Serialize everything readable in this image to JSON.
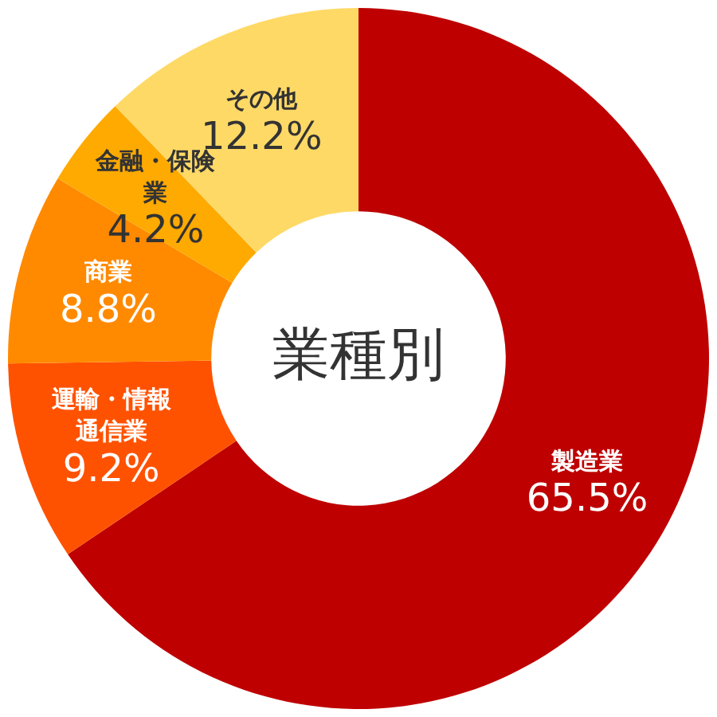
{
  "chart_data": {
    "type": "donut",
    "title": "業種別",
    "categories": [
      "製造業",
      "運輸・情報通信業",
      "商業",
      "金融・保険業",
      "その他"
    ],
    "values": [
      65.5,
      9.2,
      8.8,
      4.2,
      12.2
    ],
    "colors": [
      "#be0000",
      "#ff5200",
      "#ff8a00",
      "#ffaa00",
      "#ffd966"
    ],
    "value_labels": [
      "65.5%",
      "9.2%",
      "8.8%",
      "4.2%",
      "12.2%"
    ],
    "legend": false
  }
}
